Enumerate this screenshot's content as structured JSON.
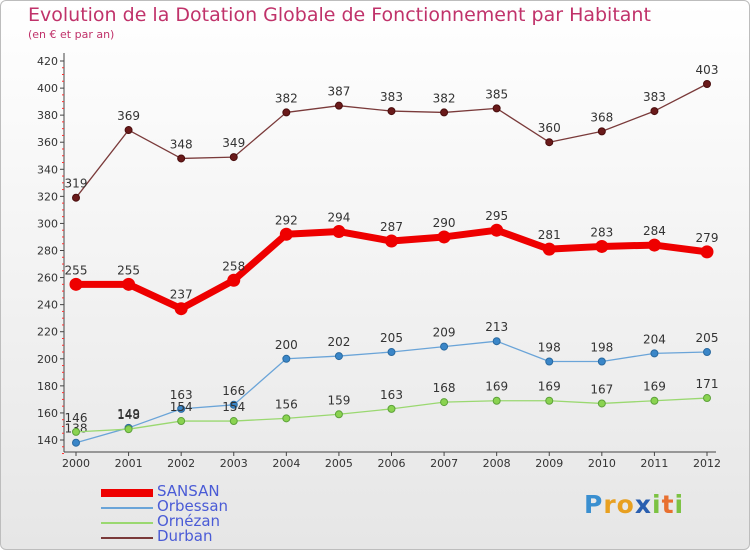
{
  "chart_data": {
    "type": "line",
    "title": "Evolution de la Dotation Globale de Fonctionnement par Habitant",
    "subtitle": "(en € et par an)",
    "xlabel": "",
    "ylabel": "",
    "ylim": [
      130,
      420
    ],
    "ytick_values": [
      140,
      160,
      180,
      200,
      220,
      240,
      260,
      280,
      300,
      320,
      340,
      360,
      380,
      400,
      420
    ],
    "grid": false,
    "legend_position": "bottom-left",
    "categories": [
      "2000",
      "2001",
      "2002",
      "2003",
      "2004",
      "2005",
      "2006",
      "2007",
      "2008",
      "2009",
      "2010",
      "2011",
      "2012"
    ],
    "series": [
      {
        "name": "SANSAN",
        "color": "#ee0000",
        "values": [
          255,
          255,
          237,
          258,
          292,
          294,
          287,
          290,
          295,
          281,
          283,
          284,
          279
        ]
      },
      {
        "name": "Orbessan",
        "color": "#5b9bd5",
        "values": [
          138,
          149,
          163,
          166,
          200,
          202,
          205,
          209,
          213,
          198,
          198,
          204,
          205
        ]
      },
      {
        "name": "Ornézan",
        "color": "#99dd66",
        "values": [
          146,
          148,
          154,
          154,
          156,
          159,
          163,
          168,
          169,
          169,
          167,
          169,
          171
        ]
      },
      {
        "name": "Durban",
        "color": "#773333",
        "values": [
          319,
          369,
          348,
          349,
          382,
          387,
          383,
          382,
          385,
          360,
          368,
          383,
          403
        ]
      }
    ]
  },
  "logo": {
    "letters": [
      "P",
      "r",
      "o",
      "x",
      "i",
      "t",
      "i"
    ],
    "colors": [
      "#3a8fd0",
      "#e8a020",
      "#e8a020",
      "#2a5fb0",
      "#7cc242",
      "#e87030",
      "#7cc242"
    ]
  }
}
